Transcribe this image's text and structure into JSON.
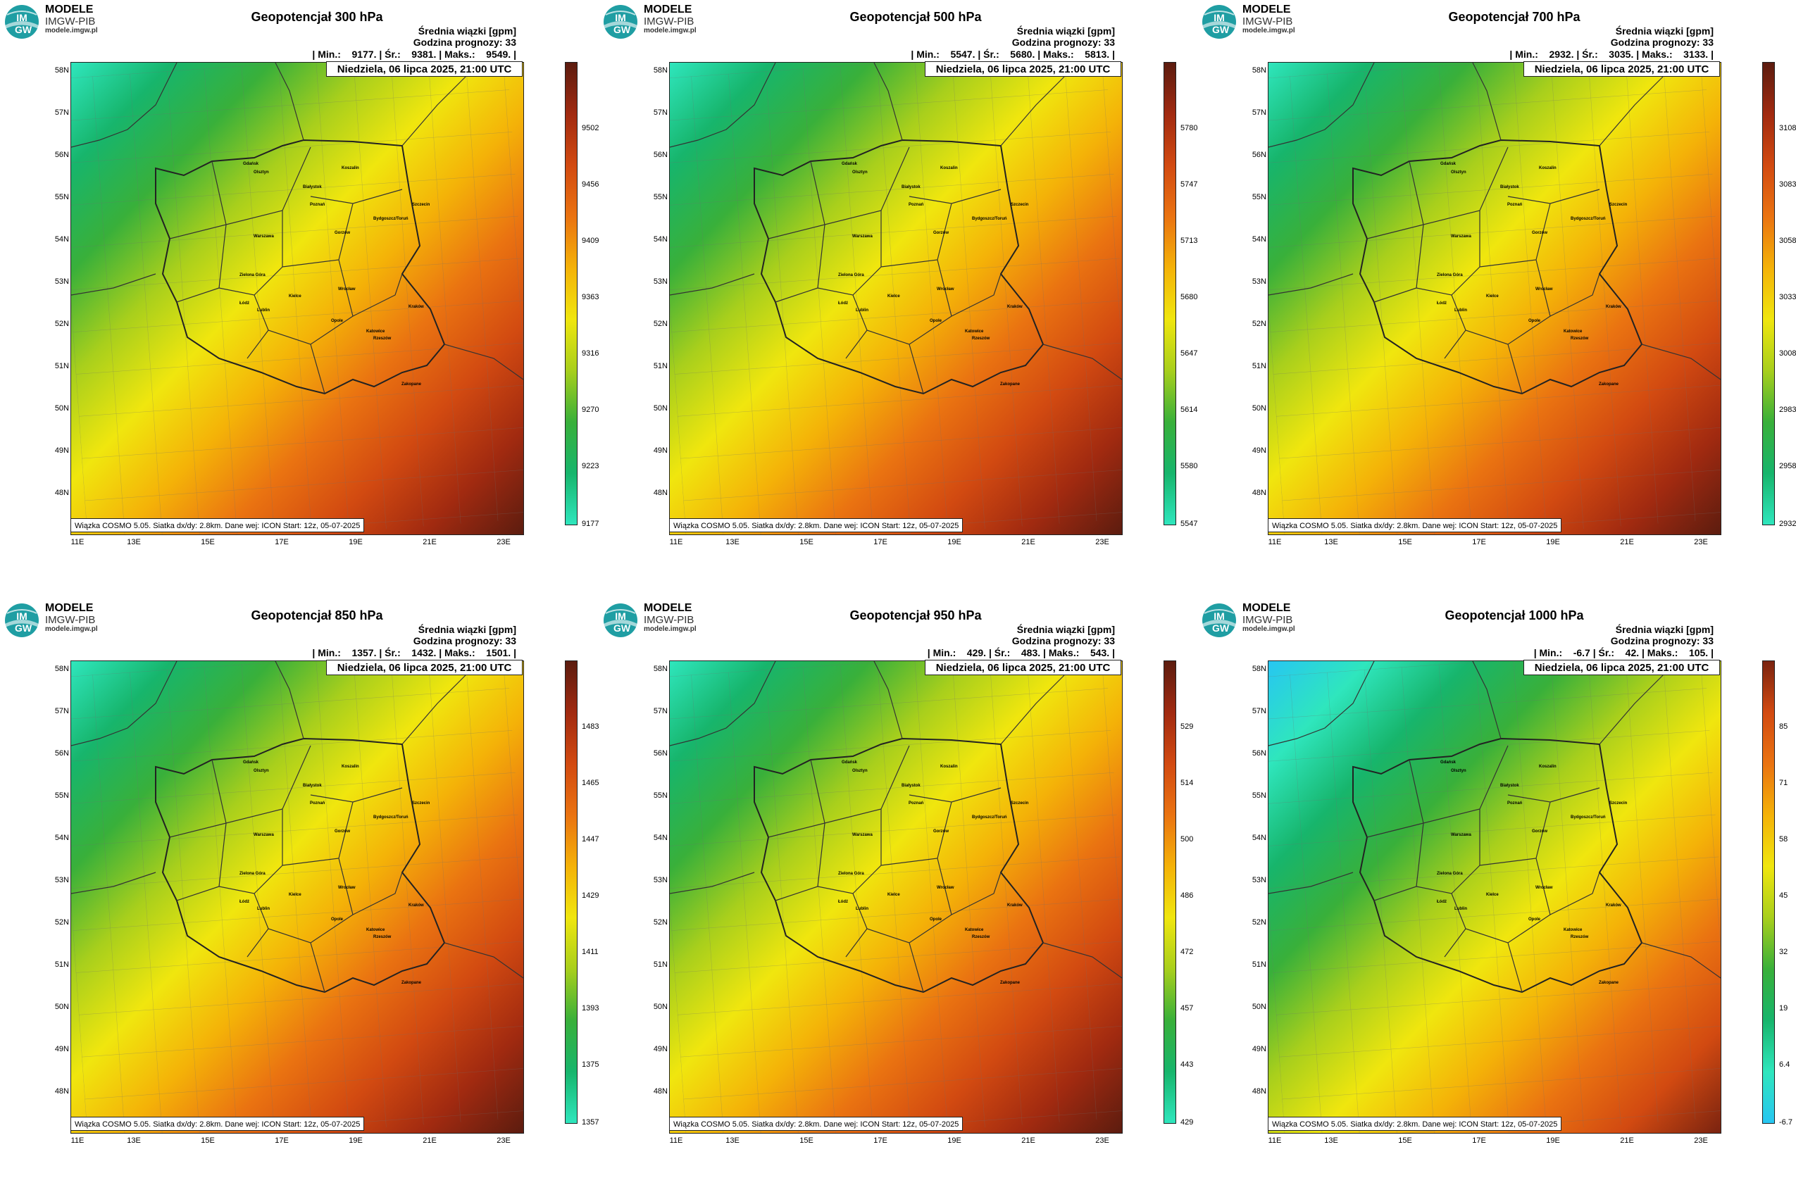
{
  "logo": {
    "name": "MODELE",
    "org": "IMGW-PIB",
    "site": "modele.imgw.pl",
    "icon": "imgw-logo-icon"
  },
  "common": {
    "info_line1": "Średnia wiązki [gpm]",
    "info_line2": "Godzina prognozy: 33",
    "date": "Niedziela, 06 lipca 2025, 21:00 UTC",
    "footer": "Wiązka COSMO 5.05. Siatka dx/dy: 2.8km. Dane wej: ICON Start: 12z, 05-07-2025",
    "lat_labels": [
      "58N",
      "57N",
      "56N",
      "55N",
      "54N",
      "53N",
      "52N",
      "51N",
      "50N",
      "49N",
      "48N"
    ],
    "lon_labels": [
      "11E",
      "13E",
      "15E",
      "17E",
      "19E",
      "21E",
      "23E"
    ],
    "cities": [
      "Gdańsk",
      "Olsztyn",
      "Koszalin",
      "Białystok",
      "Szczecin",
      "Bydgoszcz/Toruń",
      "Gorzów",
      "Poznań",
      "Warszawa",
      "Zielona Góra",
      "Łódź",
      "Lublin",
      "Wrocław",
      "Kielce",
      "Opole",
      "Katowice",
      "Kraków",
      "Rzeszów",
      "Zakopane"
    ]
  },
  "panels": [
    {
      "title": "Geopotencjał 300 hPa",
      "stats": "| Min.:    9177. | Śr.:    9381. | Maks.:    9549. |",
      "ticks": [
        "9502",
        "9456",
        "9409",
        "9363",
        "9316",
        "9270",
        "9223",
        "9177"
      ],
      "colors": [
        "#2fe6bd",
        "#17b56c",
        "#39b03a",
        "#a8cf1c",
        "#f0e60e",
        "#f4b208",
        "#ea7311",
        "#d24a11",
        "#a12a10",
        "#5c1c0f"
      ]
    },
    {
      "title": "Geopotencjał 500 hPa",
      "stats": "| Min.:    5547. | Śr.:    5680. | Maks.:    5813. |",
      "ticks": [
        "5780",
        "5747",
        "5713",
        "5680",
        "5647",
        "5614",
        "5580",
        "5547"
      ],
      "colors": [
        "#2fe6bd",
        "#17b56c",
        "#39b03a",
        "#a8cf1c",
        "#f0e60e",
        "#f4b208",
        "#ea7311",
        "#d24a11",
        "#a12a10",
        "#5c1c0f"
      ]
    },
    {
      "title": "Geopotencjał 700 hPa",
      "stats": "| Min.:    2932. | Śr.:    3035. | Maks.:    3133. |",
      "ticks": [
        "3108",
        "3083",
        "3058",
        "3033",
        "3008",
        "2983",
        "2958",
        "2932"
      ],
      "colors": [
        "#2fe6bd",
        "#17b56c",
        "#39b03a",
        "#a8cf1c",
        "#f0e60e",
        "#f4b208",
        "#ea7311",
        "#d24a11",
        "#a12a10",
        "#5c1c0f"
      ]
    },
    {
      "title": "Geopotencjał 850 hPa",
      "stats": "| Min.:    1357. | Śr.:    1432. | Maks.:    1501. |",
      "ticks": [
        "1483",
        "1465",
        "1447",
        "1429",
        "1411",
        "1393",
        "1375",
        "1357"
      ],
      "colors": [
        "#2fe6bd",
        "#17b56c",
        "#39b03a",
        "#a8cf1c",
        "#f0e60e",
        "#f4b208",
        "#ea7311",
        "#d24a11",
        "#a12a10",
        "#5c1c0f"
      ]
    },
    {
      "title": "Geopotencjał 950 hPa",
      "stats": "| Min.:    429. | Śr.:    483. | Maks.:    543. |",
      "ticks": [
        "529",
        "514",
        "500",
        "486",
        "472",
        "457",
        "443",
        "429"
      ],
      "colors": [
        "#2fe6bd",
        "#17b56c",
        "#39b03a",
        "#a8cf1c",
        "#f0e60e",
        "#f4b208",
        "#ea7311",
        "#d24a11",
        "#a12a10",
        "#5c1c0f"
      ]
    },
    {
      "title": "Geopotencjał 1000 hPa",
      "stats": "| Min.:    -6.7 | Śr.:    42. | Maks.:    105. |",
      "ticks": [
        "85",
        "71",
        "58",
        "45",
        "32",
        "19",
        "6.4",
        "-6.7"
      ],
      "colors": [
        "#27c6f2",
        "#2fe6bd",
        "#17b56c",
        "#39b03a",
        "#a8cf1c",
        "#f0e60e",
        "#f4b208",
        "#ea7311",
        "#d24a11",
        "#7a2310"
      ]
    }
  ]
}
